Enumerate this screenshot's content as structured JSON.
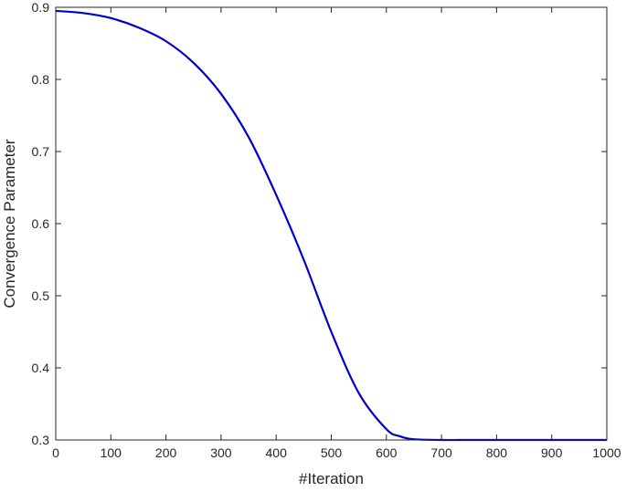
{
  "chart_data": {
    "type": "line",
    "xlabel": "#Iteration",
    "ylabel": "Convergence Parameter",
    "xlim": [
      0,
      1000
    ],
    "ylim": [
      0.3,
      0.9
    ],
    "xticks": [
      0,
      100,
      200,
      300,
      400,
      500,
      600,
      700,
      800,
      900,
      1000
    ],
    "yticks": [
      0.3,
      0.4,
      0.5,
      0.6,
      0.7,
      0.8,
      0.9
    ],
    "xtick_labels": [
      "0",
      "100",
      "200",
      "300",
      "400",
      "500",
      "600",
      "700",
      "800",
      "900",
      "1000"
    ],
    "ytick_labels": [
      "0.3",
      "0.4",
      "0.5",
      "0.6",
      "0.7",
      "0.8",
      "0.9"
    ],
    "grid": false,
    "series": [
      {
        "color": "#0000cc",
        "x": [
          0,
          50,
          100,
          150,
          200,
          250,
          300,
          350,
          400,
          450,
          500,
          550,
          600,
          625,
          650,
          700,
          750,
          800,
          850,
          900,
          950,
          1000
        ],
        "y": [
          0.895,
          0.892,
          0.885,
          0.872,
          0.853,
          0.823,
          0.78,
          0.72,
          0.64,
          0.55,
          0.45,
          0.365,
          0.315,
          0.305,
          0.301,
          0.3,
          0.3,
          0.3,
          0.3,
          0.3,
          0.3,
          0.3
        ]
      }
    ]
  }
}
